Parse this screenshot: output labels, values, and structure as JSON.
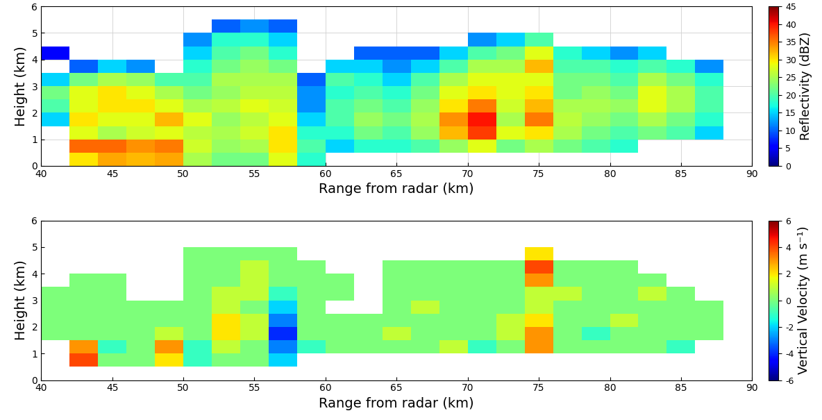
{
  "chart_data": [
    {
      "type": "heatmap",
      "xlabel": "Range from radar (km)",
      "ylabel": "Height (km)",
      "xlim": [
        40,
        90
      ],
      "ylim": [
        0,
        6
      ],
      "xticks": [
        40,
        45,
        50,
        55,
        60,
        65,
        70,
        75,
        80,
        85,
        90
      ],
      "yticks": [
        0,
        1,
        2,
        3,
        4,
        5,
        6
      ],
      "grid": true,
      "x_edges": [
        40,
        42,
        44,
        46,
        48,
        50,
        52,
        54,
        56,
        58,
        60,
        62,
        64,
        66,
        68,
        70,
        72,
        74,
        76,
        78,
        80,
        82,
        84,
        86,
        88,
        90
      ],
      "y_edges": [
        0,
        0.5,
        1,
        1.5,
        2,
        2.5,
        3,
        3.5,
        4,
        4.5,
        5,
        5.5,
        6
      ],
      "cells_by_x": [
        [
          null,
          null,
          null,
          15,
          20,
          22,
          15,
          null,
          5,
          null,
          null,
          null
        ],
        [
          30,
          36,
          28,
          30,
          28,
          28,
          22,
          10,
          null,
          null,
          null,
          null
        ],
        [
          33,
          36,
          25,
          28,
          30,
          30,
          25,
          15,
          null,
          null,
          null,
          null
        ],
        [
          32,
          34,
          27,
          28,
          30,
          28,
          24,
          12,
          null,
          null,
          null,
          null
        ],
        [
          33,
          35,
          28,
          32,
          28,
          25,
          20,
          null,
          null,
          null,
          null,
          null
        ],
        [
          25,
          27,
          26,
          28,
          25,
          22,
          20,
          18,
          15,
          12,
          null,
          null
        ],
        [
          22,
          24,
          25,
          24,
          26,
          24,
          25,
          22,
          20,
          18,
          10,
          null
        ],
        [
          22,
          25,
          27,
          26,
          28,
          26,
          25,
          24,
          22,
          18,
          12,
          null
        ],
        [
          28,
          30,
          30,
          28,
          27,
          26,
          25,
          22,
          18,
          15,
          10,
          null
        ],
        [
          18,
          20,
          18,
          15,
          12,
          12,
          10,
          null,
          null,
          null,
          null,
          null
        ],
        [
          null,
          15,
          18,
          20,
          20,
          18,
          20,
          15,
          null,
          null,
          null,
          null
        ],
        [
          null,
          18,
          22,
          24,
          22,
          20,
          18,
          15,
          10,
          null,
          null,
          null
        ],
        [
          null,
          18,
          20,
          22,
          20,
          18,
          15,
          12,
          10,
          null,
          null,
          null
        ],
        [
          null,
          20,
          24,
          25,
          24,
          22,
          20,
          15,
          10,
          null,
          null,
          null
        ],
        [
          null,
          24,
          32,
          34,
          30,
          28,
          25,
          20,
          15,
          null,
          null,
          null
        ],
        [
          null,
          28,
          38,
          40,
          35,
          30,
          28,
          25,
          20,
          12,
          null,
          null
        ],
        [
          null,
          22,
          28,
          25,
          27,
          28,
          28,
          25,
          22,
          15,
          null,
          null
        ],
        [
          null,
          25,
          30,
          35,
          32,
          30,
          28,
          32,
          28,
          20,
          null,
          null
        ],
        [
          null,
          22,
          25,
          26,
          25,
          22,
          22,
          20,
          18,
          null,
          null,
          null
        ],
        [
          null,
          20,
          22,
          24,
          25,
          24,
          22,
          20,
          15,
          null,
          null,
          null
        ],
        [
          null,
          18,
          20,
          22,
          24,
          22,
          20,
          18,
          12,
          null,
          null,
          null
        ],
        [
          null,
          null,
          22,
          25,
          28,
          28,
          25,
          20,
          15,
          null,
          null,
          null
        ],
        [
          null,
          null,
          20,
          22,
          25,
          25,
          22,
          18,
          null,
          null,
          null,
          null
        ],
        [
          null,
          null,
          15,
          18,
          20,
          20,
          18,
          12,
          null,
          null,
          null,
          null
        ],
        [
          null,
          null,
          null,
          null,
          null,
          null,
          null,
          null,
          null,
          null,
          null,
          null
        ]
      ],
      "colorbar_label": "Reflectivity (dBZ)",
      "colorbar_range": [
        0,
        45
      ],
      "colorbar_ticks": [
        0,
        5,
        10,
        15,
        20,
        25,
        30,
        35,
        40,
        45
      ]
    },
    {
      "type": "heatmap",
      "xlabel": "Range from radar (km)",
      "ylabel": "Height (km)",
      "xlim": [
        40,
        90
      ],
      "ylim": [
        0,
        6
      ],
      "xticks": [
        40,
        45,
        50,
        55,
        60,
        65,
        70,
        75,
        80,
        85,
        90
      ],
      "yticks": [
        0,
        1,
        2,
        3,
        4,
        5,
        6
      ],
      "grid": false,
      "x_edges": [
        40,
        42,
        44,
        46,
        48,
        50,
        52,
        54,
        56,
        58,
        60,
        62,
        64,
        66,
        68,
        70,
        72,
        74,
        76,
        78,
        80,
        82,
        84,
        86,
        88,
        90
      ],
      "y_edges": [
        0,
        0.5,
        1,
        1.5,
        2,
        2.5,
        3,
        3.5,
        4,
        4.5,
        5,
        5.5,
        6
      ],
      "cells_by_x": [
        [
          null,
          null,
          null,
          0,
          0,
          0,
          0,
          null,
          null,
          null,
          null,
          null
        ],
        [
          null,
          4,
          3,
          0,
          0,
          0,
          0,
          0,
          null,
          null,
          null,
          null
        ],
        [
          null,
          0,
          -1,
          0,
          0,
          0,
          0,
          0,
          null,
          null,
          null,
          null
        ],
        [
          null,
          0,
          0,
          0,
          0,
          0,
          null,
          null,
          null,
          null,
          null,
          null
        ],
        [
          null,
          2,
          3,
          1,
          0,
          0,
          null,
          null,
          null,
          null,
          null,
          null
        ],
        [
          null,
          -1,
          -1,
          0,
          0,
          0,
          0,
          0,
          0,
          0,
          null,
          null
        ],
        [
          null,
          0,
          1,
          2,
          2,
          1,
          1,
          0,
          0,
          0,
          null,
          null
        ],
        [
          null,
          0,
          0,
          1,
          1,
          0,
          1,
          1,
          1,
          0,
          null,
          null
        ],
        [
          null,
          -2,
          -3,
          -4,
          -3,
          -2,
          -1,
          0,
          0,
          0,
          null,
          null
        ],
        [
          null,
          null,
          -1,
          0,
          0,
          0,
          0,
          0,
          0,
          null,
          null,
          null
        ],
        [
          null,
          null,
          0,
          0,
          0,
          null,
          0,
          0,
          null,
          null,
          null,
          null
        ],
        [
          null,
          null,
          0,
          0,
          0,
          null,
          null,
          null,
          null,
          null,
          null,
          null
        ],
        [
          null,
          null,
          0,
          1,
          0,
          0,
          0,
          0,
          0,
          null,
          null,
          null
        ],
        [
          null,
          null,
          0,
          0,
          0,
          1,
          0,
          0,
          0,
          null,
          null,
          null
        ],
        [
          null,
          null,
          1,
          0,
          0,
          0,
          0,
          0,
          0,
          null,
          null,
          null
        ],
        [
          null,
          null,
          -1,
          0,
          0,
          0,
          0,
          0,
          0,
          null,
          null,
          null
        ],
        [
          null,
          null,
          0,
          1,
          1,
          0,
          0,
          0,
          0,
          null,
          null,
          null
        ],
        [
          null,
          null,
          3,
          3,
          2,
          1,
          1,
          3,
          4,
          2,
          null,
          null
        ],
        [
          null,
          null,
          0,
          0,
          0,
          0,
          1,
          0,
          0,
          null,
          null,
          null
        ],
        [
          null,
          null,
          0,
          -1,
          0,
          0,
          0,
          0,
          0,
          null,
          null,
          null
        ],
        [
          null,
          null,
          0,
          0,
          1,
          0,
          0,
          0,
          0,
          null,
          null,
          null
        ],
        [
          null,
          null,
          0,
          0,
          0,
          0,
          1,
          0,
          null,
          null,
          null,
          null
        ],
        [
          null,
          null,
          -1,
          0,
          0,
          0,
          0,
          null,
          null,
          null,
          null,
          null
        ],
        [
          null,
          null,
          null,
          0,
          0,
          0,
          null,
          null,
          null,
          null,
          null,
          null
        ],
        [
          null,
          null,
          null,
          null,
          null,
          null,
          null,
          null,
          null,
          null,
          null,
          null
        ]
      ],
      "colorbar_label": "Vertical Velocity (m s⁻¹)",
      "colorbar_range": [
        -6,
        6
      ],
      "colorbar_ticks": [
        -6,
        -4,
        -2,
        0,
        2,
        4,
        6
      ]
    }
  ]
}
